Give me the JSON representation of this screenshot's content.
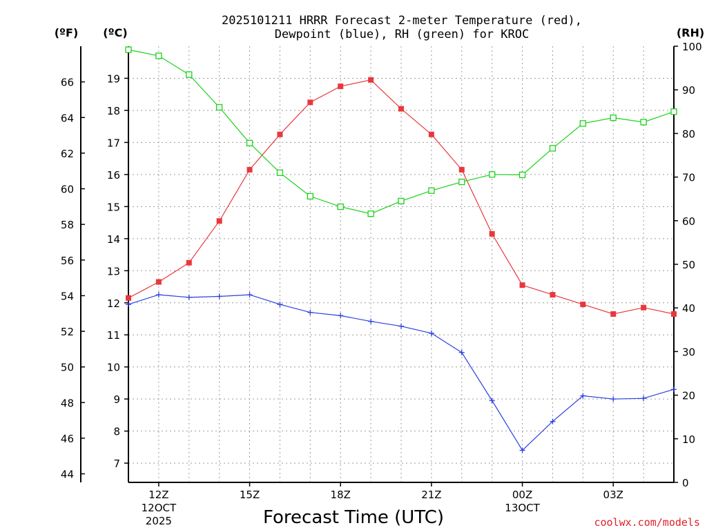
{
  "chart_data": {
    "type": "line",
    "title_line1": "2025101211 HRRR Forecast 2-meter Temperature (red),",
    "title_line2": "Dewpoint (blue), RH (green) for KROC",
    "unit_f": "(ºF)",
    "unit_c": "(ºC)",
    "unit_rh": "(RH)",
    "xlabel": "Forecast Time (UTC)",
    "credit": "coolwx.com/models",
    "x_hours": [
      11,
      12,
      13,
      14,
      15,
      16,
      17,
      18,
      19,
      20,
      21,
      22,
      23,
      24,
      25,
      26,
      27,
      28,
      29
    ],
    "xlim": [
      11,
      29
    ],
    "x_ticks": [
      {
        "x": 12,
        "label": "12Z",
        "sub1": "12OCT",
        "sub2": "2025"
      },
      {
        "x": 15,
        "label": "15Z",
        "sub1": "",
        "sub2": ""
      },
      {
        "x": 18,
        "label": "18Z",
        "sub1": "",
        "sub2": ""
      },
      {
        "x": 21,
        "label": "21Z",
        "sub1": "",
        "sub2": ""
      },
      {
        "x": 24,
        "label": "00Z",
        "sub1": "13OCT",
        "sub2": ""
      },
      {
        "x": 27,
        "label": "03Z",
        "sub1": "",
        "sub2": ""
      }
    ],
    "ylim_c": [
      6.4,
      20.0
    ],
    "ylim_rh": [
      0,
      100
    ],
    "c_ticks": [
      "7",
      "8",
      "9",
      "10",
      "11",
      "12",
      "13",
      "14",
      "15",
      "16",
      "17",
      "18",
      "19"
    ],
    "f_ticks": [
      "44",
      "46",
      "48",
      "50",
      "52",
      "54",
      "56",
      "58",
      "60",
      "62",
      "64",
      "66"
    ],
    "rh_ticks": [
      "0",
      "10",
      "20",
      "30",
      "40",
      "50",
      "60",
      "70",
      "80",
      "90",
      "100"
    ],
    "series": [
      {
        "name": "2-meter Temperature",
        "color": "#e8383d",
        "marker": "filled-square",
        "axis": "c",
        "values": [
          12.15,
          12.65,
          13.25,
          14.55,
          16.15,
          17.25,
          18.25,
          18.75,
          18.95,
          18.05,
          17.25,
          16.15,
          14.15,
          12.55,
          12.25,
          11.95,
          11.65,
          11.85,
          11.65
        ]
      },
      {
        "name": "Dewpoint",
        "color": "#2a3fe0",
        "marker": "plus",
        "axis": "c",
        "values": [
          11.95,
          12.25,
          12.17,
          12.2,
          12.25,
          11.95,
          11.7,
          11.6,
          11.42,
          11.27,
          11.05,
          10.45,
          8.95,
          7.4,
          8.3,
          9.1,
          9.0,
          9.02,
          9.3
        ]
      },
      {
        "name": "RH",
        "color": "#19d219",
        "marker": "open-square",
        "axis": "rh",
        "values": [
          99.2,
          97.8,
          93.5,
          86.0,
          77.8,
          71.0,
          65.6,
          63.2,
          61.6,
          64.5,
          66.9,
          68.9,
          70.6,
          70.5,
          76.6,
          82.3,
          83.6,
          82.6,
          85.0
        ]
      }
    ]
  }
}
